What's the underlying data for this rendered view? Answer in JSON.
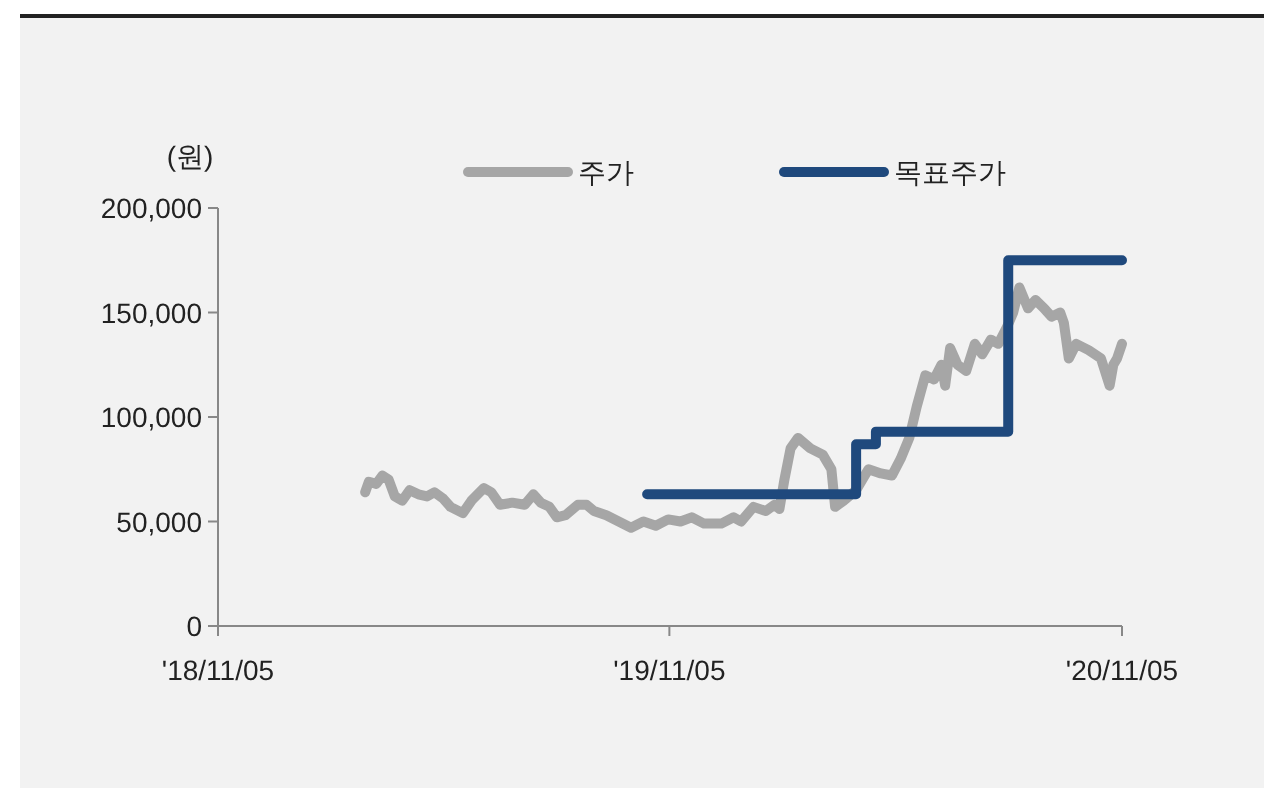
{
  "chart_data": {
    "type": "line",
    "ylabel": "(원)",
    "legend": "top",
    "marker": "none",
    "grid": false,
    "xlim": [
      "2018-11-05",
      "2020-11-05"
    ],
    "xticks": [
      {
        "value": "2018-11-05",
        "label": "'18/11/05"
      },
      {
        "value": "2019-11-05",
        "label": "'19/11/05"
      },
      {
        "value": "2020-11-05",
        "label": "'20/11/05"
      }
    ],
    "ylim": [
      0,
      200000
    ],
    "yticks": [
      {
        "value": 0,
        "label": "0"
      },
      {
        "value": 50000,
        "label": "50,000"
      },
      {
        "value": 100000,
        "label": "100,000"
      },
      {
        "value": 150000,
        "label": "150,000"
      },
      {
        "value": 200000,
        "label": "200,000"
      }
    ],
    "series": [
      {
        "name": "주가",
        "color": "#a6a6a6",
        "type": "line",
        "x": [
          "2019-03-04",
          "2019-03-07",
          "2019-03-13",
          "2019-03-18",
          "2019-03-23",
          "2019-03-28",
          "2019-04-03",
          "2019-04-09",
          "2019-04-16",
          "2019-04-23",
          "2019-04-29",
          "2019-05-06",
          "2019-05-12",
          "2019-05-22",
          "2019-05-29",
          "2019-06-08",
          "2019-06-14",
          "2019-06-21",
          "2019-07-01",
          "2019-07-11",
          "2019-07-18",
          "2019-07-24",
          "2019-07-31",
          "2019-08-06",
          "2019-08-13",
          "2019-08-23",
          "2019-08-30",
          "2019-09-05",
          "2019-09-15",
          "2019-09-25",
          "2019-10-05",
          "2019-10-15",
          "2019-10-25",
          "2019-11-04",
          "2019-11-14",
          "2019-11-23",
          "2019-12-03",
          "2019-12-17",
          "2019-12-27",
          "2020-01-02",
          "2020-01-12",
          "2020-01-22",
          "2020-01-29",
          "2020-02-02",
          "2020-02-06",
          "2020-02-11",
          "2020-02-17",
          "2020-02-27",
          "2020-03-08",
          "2020-03-15",
          "2020-03-18",
          "2020-03-25",
          "2020-04-04",
          "2020-04-14",
          "2020-04-24",
          "2020-05-03",
          "2020-05-10",
          "2020-05-17",
          "2020-05-23",
          "2020-05-30",
          "2020-06-06",
          "2020-06-12",
          "2020-06-15",
          "2020-06-19",
          "2020-06-25",
          "2020-07-02",
          "2020-07-09",
          "2020-07-15",
          "2020-07-22",
          "2020-07-28",
          "2020-08-04",
          "2020-08-09",
          "2020-08-14",
          "2020-08-21",
          "2020-08-27",
          "2020-09-03",
          "2020-09-09",
          "2020-09-16",
          "2020-09-19",
          "2020-09-23",
          "2020-09-29",
          "2020-10-09",
          "2020-10-19",
          "2020-10-26",
          "2020-10-29",
          "2020-11-01",
          "2020-11-05"
        ],
        "values": [
          64000,
          69000,
          68000,
          72000,
          70000,
          62000,
          60000,
          65000,
          63000,
          62000,
          64000,
          61000,
          57000,
          54000,
          60000,
          66000,
          64000,
          58000,
          59000,
          58000,
          63000,
          59000,
          57000,
          52000,
          53000,
          58000,
          58000,
          55000,
          53000,
          50000,
          47000,
          50000,
          48000,
          51000,
          50000,
          52000,
          49000,
          49000,
          52000,
          50000,
          57000,
          55000,
          58000,
          56000,
          70000,
          85000,
          90000,
          85000,
          82000,
          75000,
          57000,
          60000,
          65000,
          75000,
          73000,
          72000,
          80000,
          90000,
          105000,
          120000,
          118000,
          125000,
          115000,
          133000,
          125000,
          122000,
          135000,
          130000,
          137000,
          135000,
          143000,
          150000,
          162000,
          152000,
          156000,
          152000,
          148000,
          150000,
          145000,
          128000,
          135000,
          132000,
          128000,
          115000,
          125000,
          128000,
          135000
        ]
      },
      {
        "name": "목표주가",
        "color": "#1f497d",
        "type": "step",
        "x": [
          "2019-10-18",
          "2020-04-04",
          "2020-04-20",
          "2020-08-05",
          "2020-11-05"
        ],
        "values": [
          63000,
          87000,
          93000,
          175000,
          175000
        ]
      }
    ]
  }
}
